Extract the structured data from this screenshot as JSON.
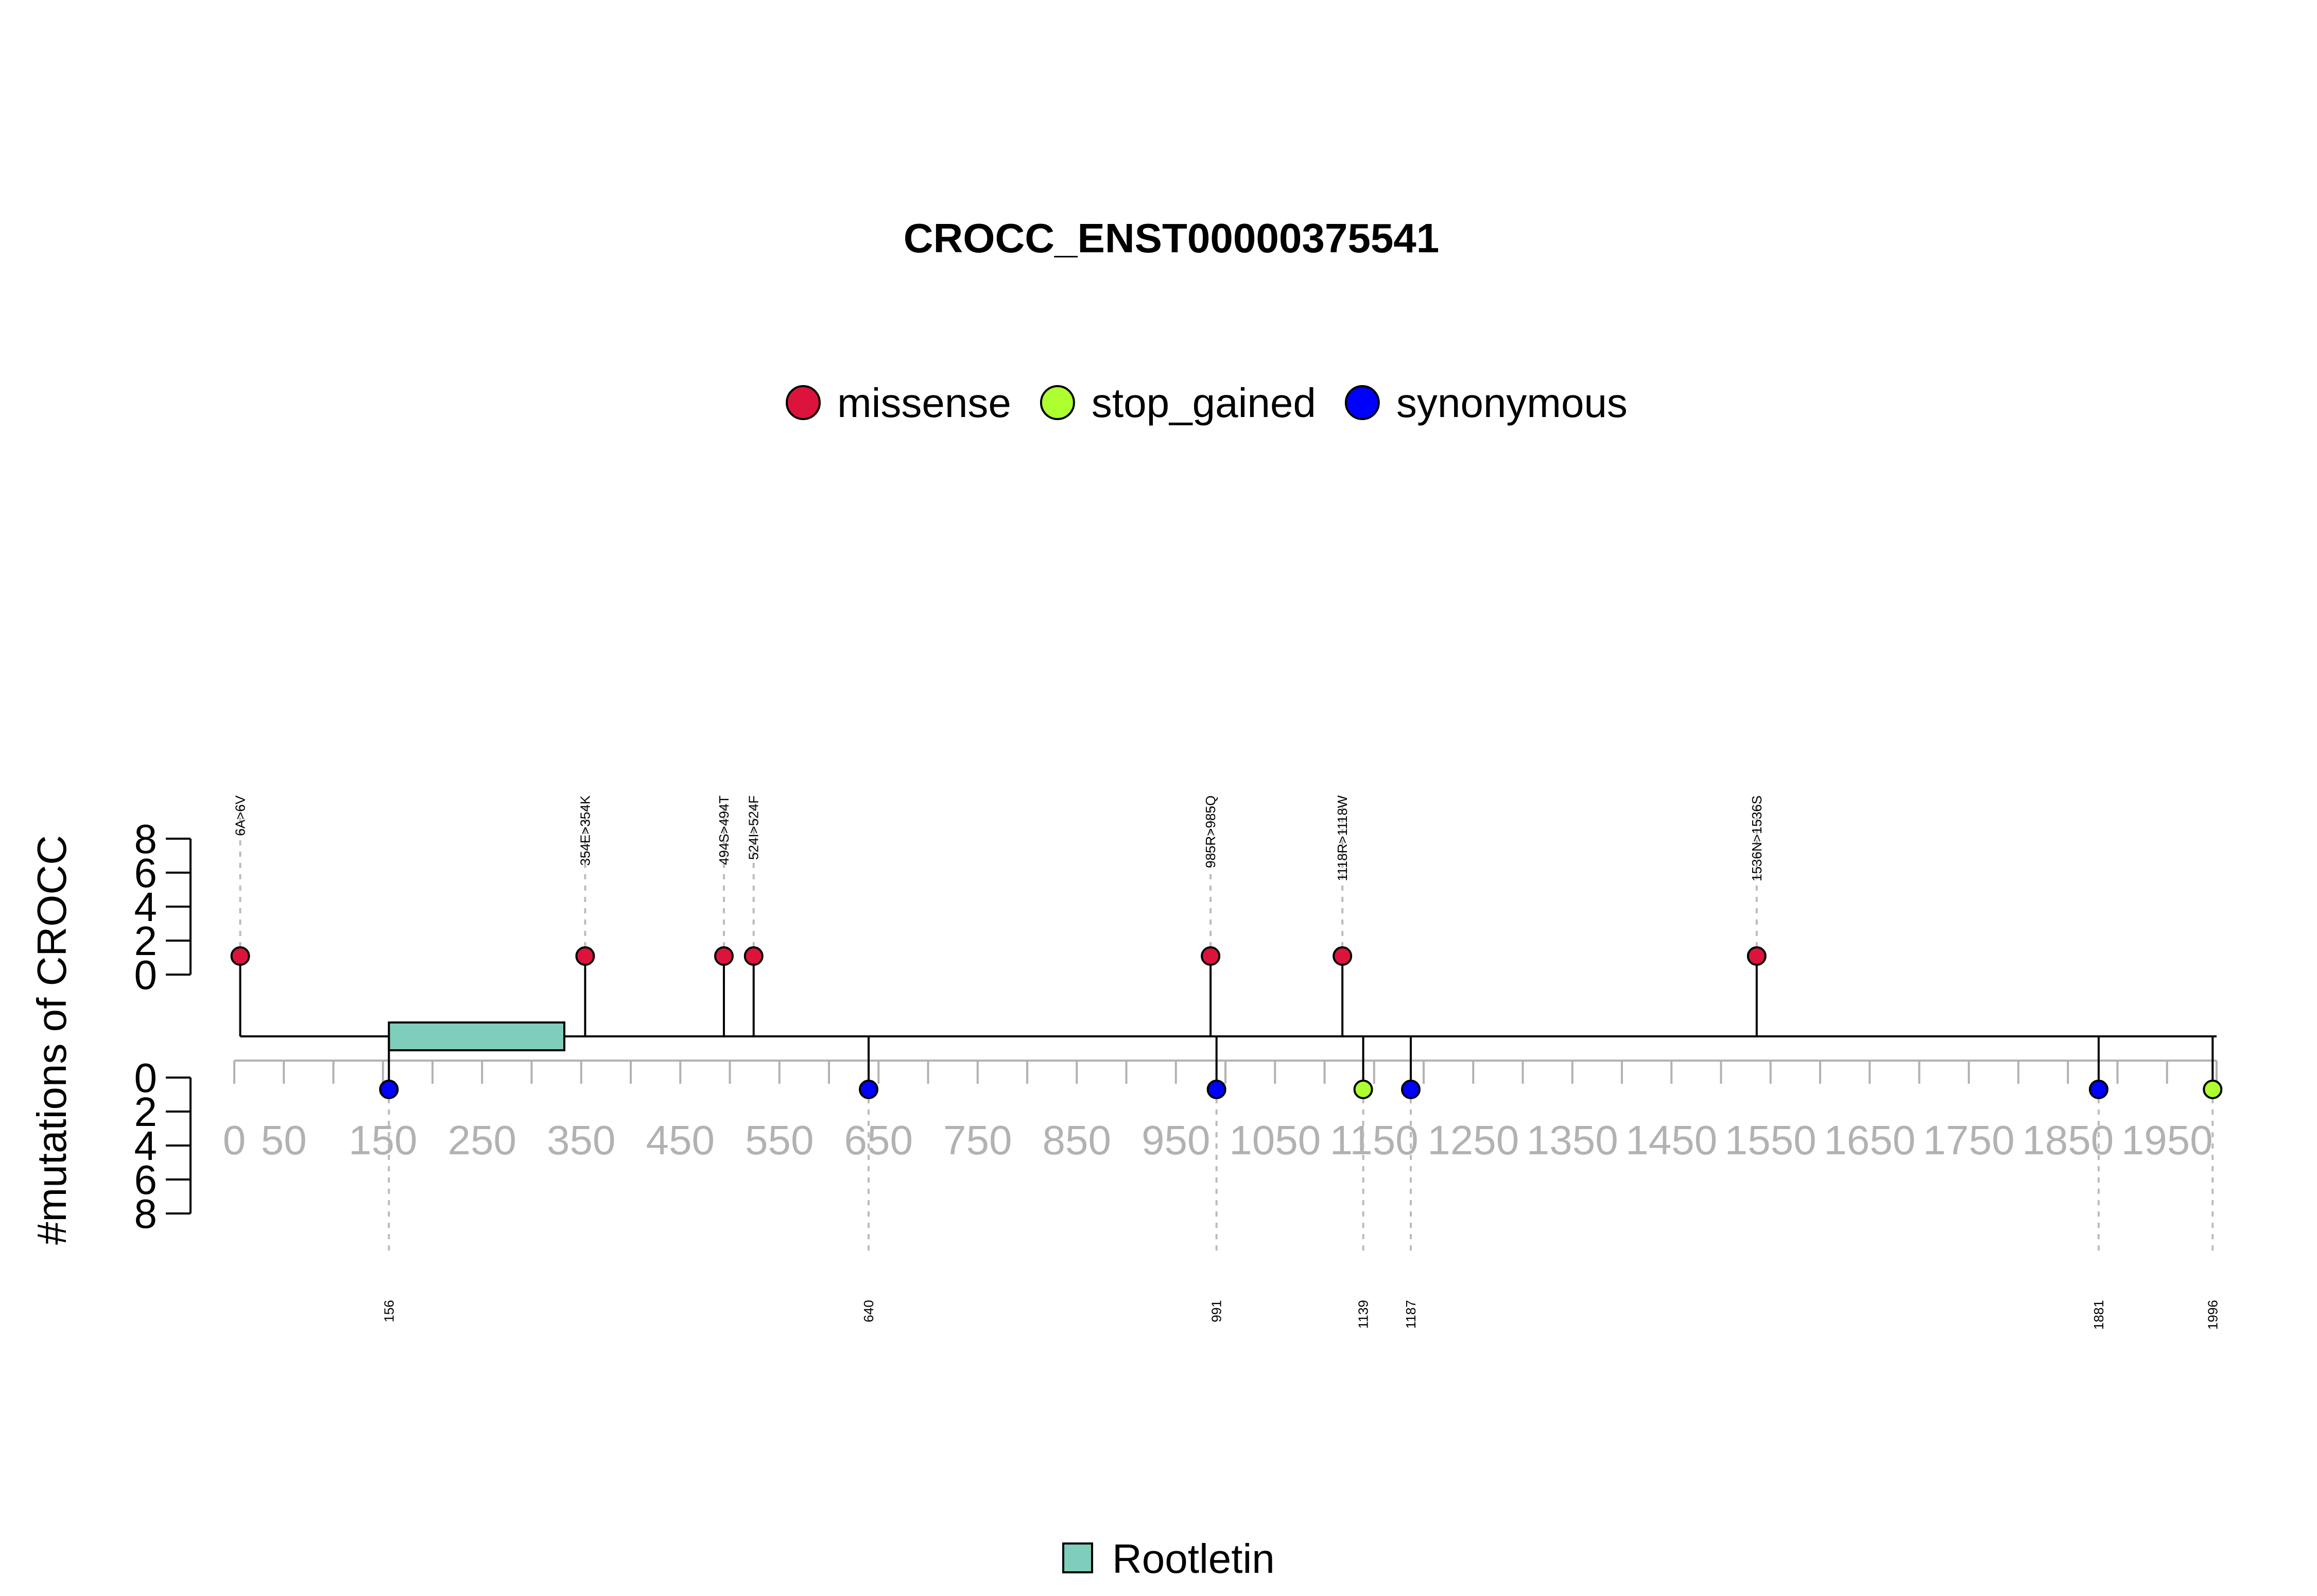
{
  "chart_data": {
    "type": "lollipop",
    "title": "CROCC_ENST00000375541",
    "ylabel": "#mutations of CROCC",
    "xlim": [
      0,
      2000
    ],
    "x_ticks": [
      "0",
      "50",
      "150",
      "250",
      "350",
      "450",
      "550",
      "650",
      "750",
      "850",
      "950",
      "1050",
      "1150",
      "1250",
      "1350",
      "1450",
      "1550",
      "1650",
      "1750",
      "1850",
      "1950"
    ],
    "y_ticks_upper": [
      "0",
      "2",
      "4",
      "6",
      "8"
    ],
    "y_ticks_lower": [
      "0",
      "2",
      "4",
      "6",
      "8"
    ],
    "legend": [
      {
        "name": "missense",
        "color": "#dc143c"
      },
      {
        "name": "stop_gained",
        "color": "#adff2f"
      },
      {
        "name": "synonymous",
        "color": "#0000ff"
      }
    ],
    "mutations_upper": [
      {
        "pos": 6,
        "label": "6A>6V",
        "type": "missense",
        "count": 1
      },
      {
        "pos": 354,
        "label": "354E>354K",
        "type": "missense",
        "count": 1
      },
      {
        "pos": 494,
        "label": "494S>494T",
        "type": "missense",
        "count": 1
      },
      {
        "pos": 524,
        "label": "524I>524F",
        "type": "missense",
        "count": 1
      },
      {
        "pos": 985,
        "label": "985R>985Q",
        "type": "missense",
        "count": 1
      },
      {
        "pos": 1118,
        "label": "1118R>1118W",
        "type": "missense",
        "count": 1
      },
      {
        "pos": 1536,
        "label": "1536N>1536S",
        "type": "missense",
        "count": 1
      }
    ],
    "mutations_lower": [
      {
        "pos": 156,
        "label": "156",
        "type": "synonymous",
        "count": 1
      },
      {
        "pos": 640,
        "label": "640",
        "type": "synonymous",
        "count": 1
      },
      {
        "pos": 991,
        "label": "991",
        "type": "synonymous",
        "count": 1
      },
      {
        "pos": 1139,
        "label": "1139",
        "type": "stop_gained",
        "count": 1
      },
      {
        "pos": 1187,
        "label": "1187",
        "type": "synonymous",
        "count": 1
      },
      {
        "pos": 1881,
        "label": "1881",
        "type": "synonymous",
        "count": 1
      },
      {
        "pos": 1996,
        "label": "1996",
        "type": "stop_gained",
        "count": 1
      }
    ],
    "domains": [
      {
        "name": "Rootletin",
        "start": 156,
        "end": 333,
        "color": "#7fcdbb"
      }
    ]
  }
}
